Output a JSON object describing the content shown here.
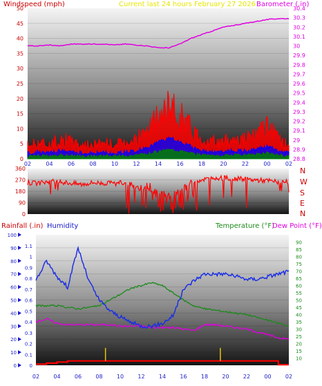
{
  "header": {
    "wind_label": "Windspeed (mph)",
    "center_label": "Current last 24 hours February 27 2026",
    "baro_label": "Barometer (.in)"
  },
  "colors": {
    "wind": "#ff0000",
    "gust_avg": "#0000ff",
    "wind_min": "#008000",
    "barometer": "#e000e0",
    "humidity": "#1c2fe6",
    "temperature": "#1a8a1a",
    "dew_point": "#e000e0",
    "rain": "#ff0000",
    "axis_left": "#cc0000",
    "center_title": "#e6e600",
    "rain_axis": "#1a1acc"
  },
  "bottom": {
    "rain_label": "Rainfall (.in)",
    "humidity_label": "Humidity",
    "temp_label": "Temperature (°F)",
    "dew_label": "Dew Point (°F)"
  },
  "compass_labels": [
    "N",
    "W",
    "S",
    "E",
    "N"
  ],
  "chart_data": [
    {
      "type": "line",
      "title": "Current last 24 hours February 27 2026",
      "x_ticks": [
        "02",
        "04",
        "06",
        "08",
        "10",
        "12",
        "14",
        "16",
        "18",
        "20",
        "22",
        "00",
        "02"
      ],
      "y_left": {
        "label": "Windspeed (mph)",
        "range": [
          0,
          50
        ],
        "ticks": [
          "0",
          "5",
          "10",
          "15",
          "20",
          "25",
          "30",
          "35",
          "40",
          "45",
          "50"
        ]
      },
      "y_right": {
        "label": "Barometer (.in)",
        "range": [
          28.8,
          30.4
        ],
        "ticks": [
          "28.8",
          "28.9",
          "29",
          "29.1",
          "29.2",
          "29.3",
          "29.4",
          "29.5",
          "29.6",
          "29.7",
          "29.8",
          "29.9",
          "30",
          "30.1",
          "30.2",
          "30.3",
          "30.4"
        ]
      },
      "series": [
        {
          "name": "Windspeed",
          "x": [
            0,
            1,
            2,
            3,
            4,
            5,
            6,
            7,
            8,
            9,
            10,
            11,
            12,
            13,
            14,
            15,
            16,
            17,
            18,
            19,
            20,
            21,
            22,
            23,
            24
          ],
          "values": [
            4,
            5,
            4,
            6,
            5,
            4,
            4,
            5,
            4,
            5,
            6,
            8,
            12,
            15,
            13,
            9,
            6,
            5,
            5,
            6,
            6,
            7,
            9,
            6,
            4
          ]
        },
        {
          "name": "Barometer",
          "x": [
            0,
            1,
            2,
            3,
            4,
            5,
            6,
            7,
            8,
            9,
            10,
            11,
            12,
            13,
            14,
            15,
            16,
            17,
            18,
            19,
            20,
            21,
            22,
            23,
            24
          ],
          "values": [
            30.0,
            30.0,
            30.01,
            30.0,
            30.02,
            30.02,
            30.02,
            30.02,
            30.01,
            30.02,
            30.01,
            30.0,
            29.98,
            29.98,
            30.02,
            30.08,
            30.12,
            30.16,
            30.2,
            30.22,
            30.24,
            30.26,
            30.28,
            30.29,
            30.29
          ]
        }
      ]
    },
    {
      "type": "line",
      "y_left": {
        "label": "",
        "range": [
          0,
          360
        ],
        "ticks": [
          "0",
          "90",
          "180",
          "270",
          "360"
        ]
      },
      "series": [
        {
          "name": "Wind direction",
          "x": [
            0,
            1,
            2,
            3,
            4,
            5,
            6,
            7,
            8,
            9,
            10,
            11,
            12,
            13,
            14,
            15,
            16,
            17,
            18,
            19,
            20,
            21,
            22,
            23,
            24
          ],
          "values": [
            250,
            240,
            260,
            255,
            245,
            235,
            250,
            245,
            240,
            250,
            215,
            200,
            170,
            150,
            180,
            250,
            275,
            280,
            285,
            280,
            275,
            270,
            265,
            255,
            250
          ]
        }
      ]
    },
    {
      "type": "line",
      "x_ticks": [
        "02",
        "04",
        "06",
        "08",
        "10",
        "12",
        "14",
        "16",
        "18",
        "20",
        "22",
        "00",
        "02"
      ],
      "y_left": {
        "label": "Rainfall (.in)",
        "range": [
          0,
          1.2
        ],
        "ticks": [
          "0",
          "0.1",
          "0.2",
          "0.3",
          "0.4",
          "0.5",
          "0.6",
          "0.7",
          "0.8",
          "0.9",
          "1",
          "1.1"
        ]
      },
      "y_humidity": {
        "label": "Humidity",
        "range": [
          0,
          100
        ],
        "ticks": [
          "0",
          "10",
          "20",
          "30",
          "40",
          "50",
          "60",
          "70",
          "80",
          "90",
          "100"
        ]
      },
      "y_right": {
        "label": "Temperature (°F)",
        "range": [
          5,
          95
        ],
        "ticks": [
          "10",
          "15",
          "20",
          "25",
          "30",
          "35",
          "40",
          "45",
          "50",
          "55",
          "60",
          "65",
          "70",
          "75",
          "80",
          "85",
          "90"
        ]
      },
      "series": [
        {
          "name": "Humidity",
          "x": [
            0,
            1,
            2,
            3,
            4,
            5,
            6,
            7,
            8,
            9,
            10,
            11,
            12,
            13,
            14,
            15,
            16,
            17,
            18,
            19,
            20,
            21,
            22,
            23,
            24
          ],
          "values": [
            65,
            80,
            68,
            60,
            90,
            65,
            50,
            42,
            37,
            33,
            30,
            30,
            32,
            38,
            58,
            65,
            70,
            70,
            70,
            68,
            66,
            66,
            68,
            70,
            72
          ]
        },
        {
          "name": "Temperature",
          "x": [
            0,
            1,
            2,
            3,
            4,
            5,
            6,
            7,
            8,
            9,
            10,
            11,
            12,
            13,
            14,
            15,
            16,
            17,
            18,
            19,
            20,
            21,
            22,
            23,
            24
          ],
          "values": [
            46,
            46,
            46,
            45,
            44,
            45,
            46,
            50,
            54,
            58,
            60,
            62,
            60,
            55,
            50,
            46,
            44,
            43,
            42,
            41,
            40,
            38,
            36,
            34,
            32
          ]
        },
        {
          "name": "Dew Point",
          "x": [
            0,
            1,
            2,
            3,
            4,
            5,
            6,
            7,
            8,
            9,
            10,
            11,
            12,
            13,
            14,
            15,
            16,
            17,
            18,
            19,
            20,
            21,
            22,
            23,
            24
          ],
          "values": [
            35,
            37,
            34,
            33,
            33,
            33,
            33,
            33,
            32,
            32,
            32,
            31,
            31,
            31,
            30,
            29,
            33,
            33,
            32,
            31,
            30,
            28,
            26,
            24,
            23
          ]
        },
        {
          "name": "Rainfall",
          "x": [
            0,
            1,
            2,
            3,
            4,
            5,
            6,
            7,
            8,
            9,
            10,
            11,
            12,
            13,
            14,
            15,
            16,
            17,
            18,
            19,
            20,
            21,
            22,
            23,
            24
          ],
          "values": [
            0.01,
            0.02,
            0.03,
            0.04,
            0.04,
            0.04,
            0.04,
            0.04,
            0.04,
            0.04,
            0.04,
            0.04,
            0.04,
            0.04,
            0.04,
            0.04,
            0.04,
            0.04,
            0.04,
            0.04,
            0.04,
            0.04,
            0.04,
            0.005,
            0.005
          ]
        }
      ]
    }
  ]
}
